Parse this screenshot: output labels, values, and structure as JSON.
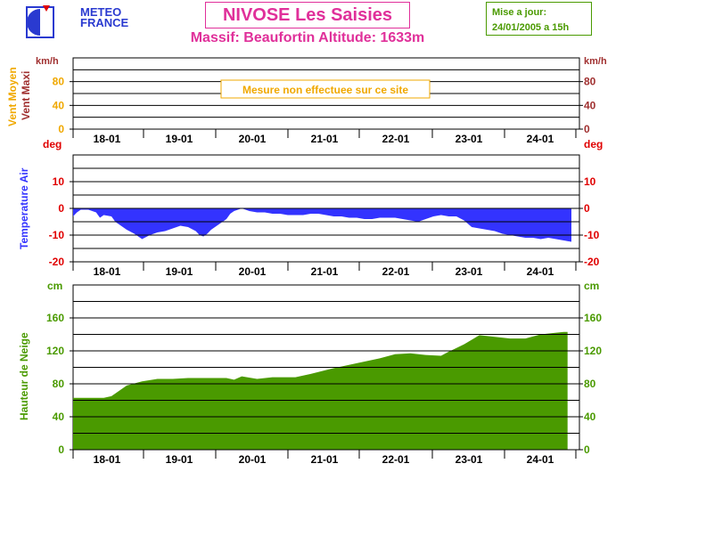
{
  "header": {
    "logo_line1": "METEO",
    "logo_line2": "FRANCE",
    "title": "NIVOSE Les Saisies",
    "subtitle": "Massif: Beaufortin Altitude: 1633m",
    "update_line1": "Mise a jour:",
    "update_line2": "24/01/2005 a 15h"
  },
  "colors": {
    "title": "#e0309a",
    "wind_moyen": "#f0a800",
    "wind_maxi": "#a03030",
    "temp_unit": "#e00000",
    "temp_fill": "#3333ff",
    "snow": "#4a9a00"
  },
  "chart_data": [
    {
      "type": "area",
      "name": "wind",
      "ylabel_left_1": "Vent Moyen",
      "ylabel_left_2": "Vent Maxi",
      "unit_left": "km/h",
      "unit_right": "km/h",
      "yticks": [
        0,
        40,
        80
      ],
      "ylim": [
        0,
        120
      ],
      "grid": true,
      "annotation": "Mesure non effectuee sur ce site",
      "x_labels": [
        "18-01",
        "19-01",
        "20-01",
        "21-01",
        "22-01",
        "23-01",
        "24-01"
      ],
      "series": []
    },
    {
      "type": "area",
      "name": "temperature",
      "ylabel": "Temperature Air",
      "unit_left": "deg",
      "unit_right": "deg",
      "yticks": [
        -20,
        -10,
        0,
        10
      ],
      "ylim": [
        -20,
        20
      ],
      "grid": true,
      "x_labels": [
        "18-01",
        "19-01",
        "20-01",
        "21-01",
        "22-01",
        "23-01",
        "24-01"
      ],
      "x": [
        0,
        0.5,
        1,
        2,
        2.5,
        3,
        3.5,
        4,
        5,
        5.5,
        6,
        6.5,
        7,
        8,
        9,
        10,
        11,
        12,
        13,
        14,
        15,
        16,
        16.5,
        17,
        17.5,
        18,
        18.5,
        19,
        20,
        20.5,
        21,
        21.5,
        22,
        22.5,
        23,
        24,
        25,
        26,
        27,
        28,
        29,
        30,
        31,
        32,
        33,
        34,
        35,
        36,
        37,
        38,
        39,
        40,
        41,
        42,
        43,
        44,
        45,
        46,
        47,
        48,
        49,
        50,
        51,
        52,
        53,
        54,
        55,
        56,
        57,
        58,
        59,
        60,
        61,
        62,
        63,
        64,
        65
      ],
      "values": [
        -3,
        -1.5,
        -0.5,
        -0.5,
        -1,
        -1.5,
        -3.5,
        -2.5,
        -3,
        -5,
        -6,
        -7,
        -8,
        -9.5,
        -11.5,
        -10,
        -9,
        -8.5,
        -7.5,
        -6.5,
        -7,
        -8.5,
        -10,
        -10.5,
        -9.5,
        -8,
        -7,
        -6,
        -4,
        -2,
        -1,
        -0.5,
        0,
        -0.5,
        -1,
        -1.5,
        -1.5,
        -2,
        -2,
        -2.5,
        -2.5,
        -2.5,
        -2,
        -2,
        -2.5,
        -3,
        -3,
        -3.5,
        -3.5,
        -4,
        -4,
        -3.5,
        -3.5,
        -3.5,
        -4,
        -4.5,
        -5,
        -4,
        -3,
        -2.5,
        -3,
        -3,
        -4.5,
        -7,
        -7.5,
        -8,
        -8.5,
        -9.5,
        -10,
        -10.5,
        -11,
        -11,
        -11.5,
        -11,
        -11.5,
        -12,
        -12.5
      ],
      "series_name": ""
    },
    {
      "type": "area",
      "name": "snow",
      "ylabel": "Hauteur de Neige",
      "unit_left": "cm",
      "unit_right": "cm",
      "yticks": [
        0,
        40,
        80,
        120,
        160
      ],
      "ylim": [
        0,
        200
      ],
      "grid": true,
      "x_labels": [
        "18-01",
        "19-01",
        "20-01",
        "21-01",
        "22-01",
        "23-01",
        "24-01"
      ],
      "x": [
        0,
        4,
        5,
        7,
        9,
        11,
        13,
        15,
        18,
        20,
        21,
        22,
        24,
        26,
        29,
        31,
        34,
        37,
        40,
        42,
        44,
        46,
        48,
        49,
        51,
        53,
        55,
        57,
        59,
        61,
        63,
        64,
        64.5
      ],
      "values": [
        63,
        63,
        65,
        78,
        83,
        86,
        86,
        87,
        87,
        87,
        85,
        89,
        86,
        88,
        88,
        92,
        99,
        105,
        111,
        116,
        117,
        115,
        114,
        119,
        128,
        139,
        137,
        135,
        135,
        140,
        142,
        143,
        143
      ],
      "series_name": ""
    }
  ]
}
